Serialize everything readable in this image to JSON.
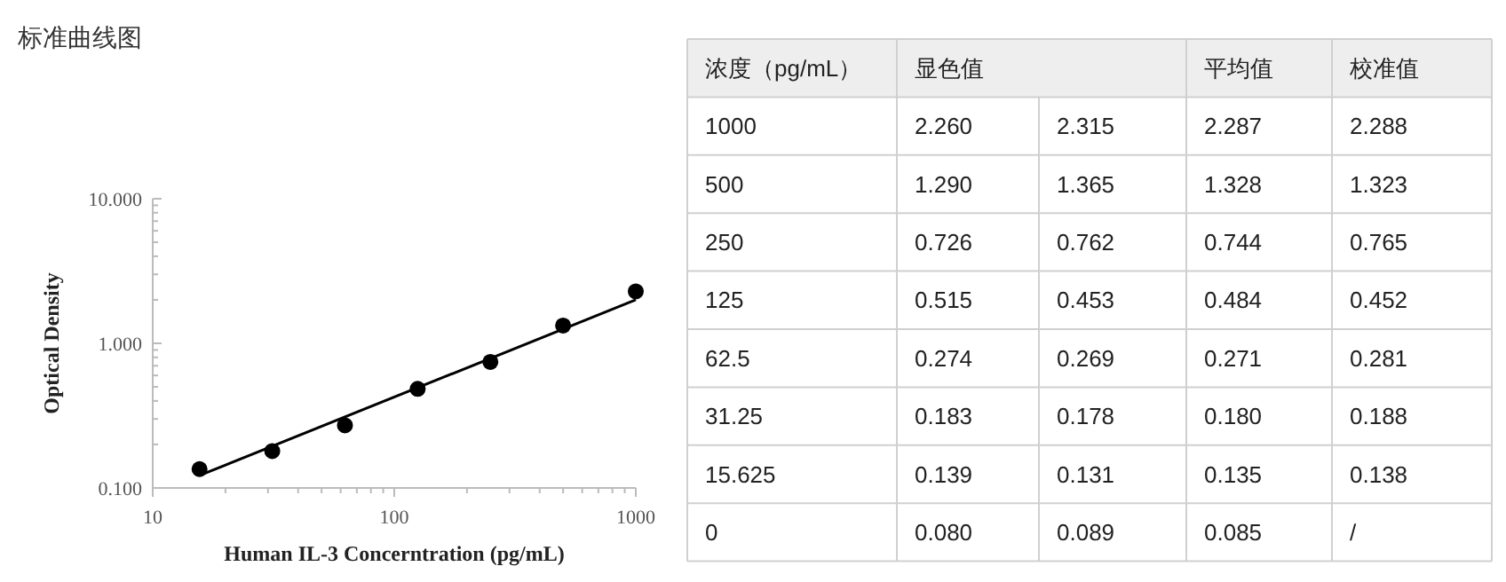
{
  "chart_data": [
    {
      "type": "scatter",
      "title": "标准曲线图",
      "xlabel": "Human IL-3 Concerntration (pg/mL)",
      "ylabel": "Optical Density",
      "log": "xy",
      "xlim": [
        10,
        1000
      ],
      "ylim": [
        0.1,
        10
      ],
      "xticks": [
        10,
        {
          "value": 20,
          "label": null
        },
        {
          "value": 30,
          "label": null
        },
        {
          "value": 40,
          "label": null
        },
        {
          "value": 50,
          "label": null
        },
        {
          "value": 60,
          "label": null
        },
        {
          "value": 70,
          "label": null
        },
        {
          "value": 80,
          "label": null
        },
        {
          "value": 90,
          "label": null
        },
        100,
        {
          "value": 200,
          "label": null
        },
        {
          "value": 300,
          "label": null
        },
        {
          "value": 400,
          "label": null
        },
        {
          "value": 500,
          "label": null
        },
        {
          "value": 600,
          "label": null
        },
        {
          "value": 700,
          "label": null
        },
        {
          "value": 800,
          "label": null
        },
        {
          "value": 900,
          "label": null
        },
        1000
      ],
      "yticks": [
        {
          "value": 0.1,
          "label": "0.100"
        },
        {
          "value": 0.2,
          "label": null
        },
        {
          "value": 0.3,
          "label": null
        },
        {
          "value": 0.4,
          "label": null
        },
        {
          "value": 0.5,
          "label": null
        },
        {
          "value": 0.6,
          "label": null
        },
        {
          "value": 0.7,
          "label": null
        },
        {
          "value": 0.8,
          "label": null
        },
        {
          "value": 0.9,
          "label": null
        },
        {
          "value": 1,
          "label": "1.000"
        },
        {
          "value": 2,
          "label": null
        },
        {
          "value": 3,
          "label": null
        },
        {
          "value": 4,
          "label": null
        },
        {
          "value": 5,
          "label": null
        },
        {
          "value": 6,
          "label": null
        },
        {
          "value": 7,
          "label": null
        },
        {
          "value": 8,
          "label": null
        },
        {
          "value": 9,
          "label": null
        },
        {
          "value": 10,
          "label": "10.000"
        }
      ],
      "series": [
        {
          "type": "scatter",
          "marker": "circle",
          "color": "#000000",
          "x": [
            15.625,
            31.25,
            62.5,
            125,
            250,
            500,
            1000
          ],
          "values": [
            0.135,
            0.18,
            0.271,
            0.484,
            0.744,
            1.328,
            2.287
          ]
        },
        {
          "type": "line",
          "marker": "none",
          "color": "#000000",
          "x": [
            15.625,
            1000
          ],
          "values": [
            0.122,
            2.0
          ]
        }
      ]
    },
    {
      "type": "other",
      "xlabel": "浓度（pg/mL）",
      "categories": [
        "1000",
        "500",
        "250",
        "125",
        "62.5",
        "31.25",
        "15.625",
        "0"
      ],
      "series": [
        {
          "name": "显色值",
          "values": [
            2.26,
            1.29,
            0.726,
            0.515,
            0.274,
            0.183,
            0.139,
            0.08
          ],
          "value_labels": [
            "2.260",
            "1.290",
            "0.726",
            "0.515",
            "0.274",
            "0.183",
            "0.139",
            "0.080"
          ]
        },
        {
          "values": [
            2.315,
            1.365,
            0.762,
            0.453,
            0.269,
            0.178,
            0.131,
            0.089
          ],
          "value_labels": [
            "2.315",
            "1.365",
            "0.762",
            "0.453",
            "0.269",
            "0.178",
            "0.131",
            "0.089"
          ]
        },
        {
          "name": "平均值",
          "values": [
            2.287,
            1.328,
            0.744,
            0.484,
            0.271,
            0.18,
            0.135,
            0.085
          ],
          "value_labels": [
            "2.287",
            "1.328",
            "0.744",
            "0.484",
            "0.271",
            "0.180",
            "0.135",
            "0.085"
          ]
        },
        {
          "name": "校准值",
          "values": [
            2.288,
            1.323,
            0.765,
            0.452,
            0.281,
            0.188,
            0.138,
            null
          ],
          "value_labels": [
            "2.288",
            "1.323",
            "0.765",
            "0.452",
            "0.281",
            "0.188",
            "0.138",
            "/"
          ]
        }
      ]
    }
  ]
}
